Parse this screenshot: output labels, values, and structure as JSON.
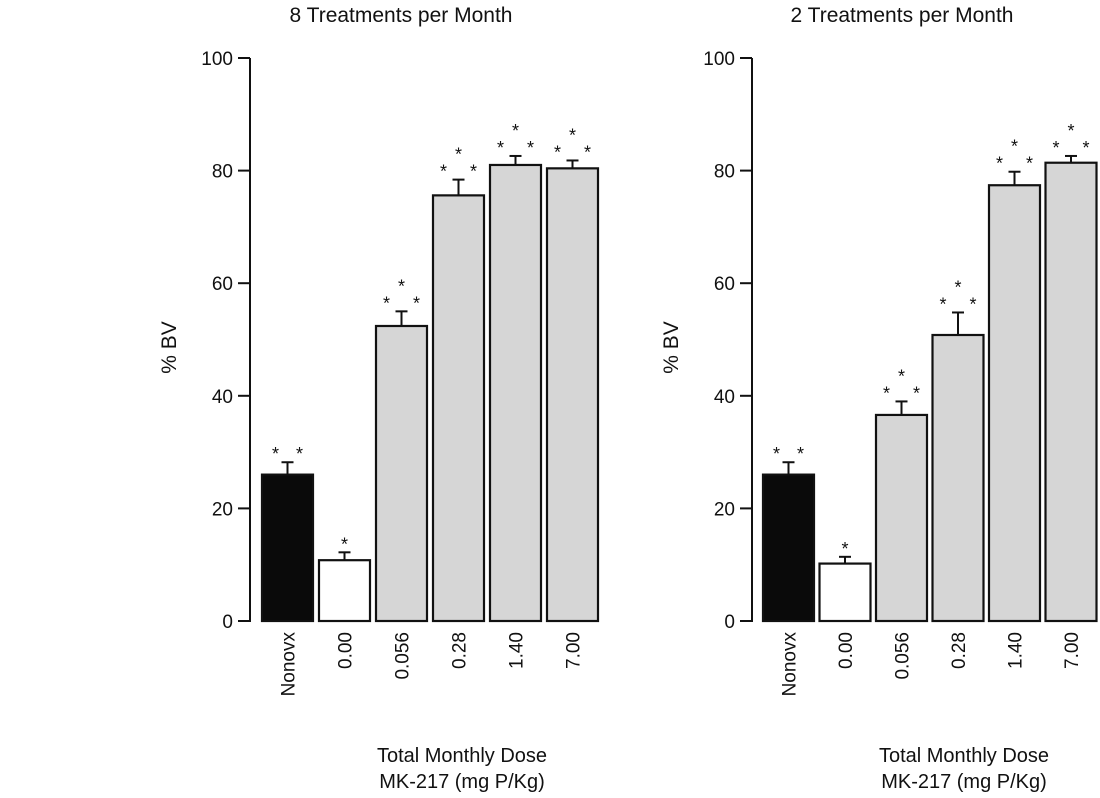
{
  "chart_data": [
    {
      "type": "bar",
      "title": "8 Treatments per Month",
      "ylabel": "% BV",
      "xlabel_lines": [
        "Total Monthly Dose",
        "MK-217 (mg P/Kg)"
      ],
      "ylim": [
        0,
        100
      ],
      "yticks": [
        "0",
        "20",
        "40",
        "60",
        "80",
        "100"
      ],
      "categories": [
        "Nonovx",
        "0.00",
        "0.056",
        "0.28",
        "1.40",
        "7.00"
      ],
      "values": [
        26,
        10.8,
        52.4,
        75.6,
        81.0,
        80.4
      ],
      "errors": [
        2.2,
        1.4,
        2.6,
        2.8,
        1.6,
        1.4
      ],
      "significance": [
        "* *",
        "*",
        "* * *",
        "* * *",
        "* * *",
        "* * *"
      ],
      "bar_fills": [
        "#0a0a0a",
        "#ffffff",
        "#d6d6d6",
        "#d6d6d6",
        "#d6d6d6",
        "#d6d6d6"
      ]
    },
    {
      "type": "bar",
      "title": "2 Treatments per Month",
      "ylabel": "% BV",
      "xlabel_lines": [
        "Total Monthly Dose",
        "MK-217 (mg P/Kg)"
      ],
      "ylim": [
        0,
        100
      ],
      "yticks": [
        "0",
        "20",
        "40",
        "60",
        "80",
        "100"
      ],
      "categories": [
        "Nonovx",
        "0.00",
        "0.056",
        "0.28",
        "1.40",
        "7.00"
      ],
      "values": [
        26,
        10.2,
        36.6,
        50.8,
        77.4,
        81.4
      ],
      "errors": [
        2.2,
        1.2,
        2.4,
        4.0,
        2.4,
        1.2
      ],
      "significance": [
        "* *",
        "*",
        "* * *",
        "* * *",
        "* * *",
        "* * *"
      ],
      "bar_fills": [
        "#0a0a0a",
        "#ffffff",
        "#d6d6d6",
        "#d6d6d6",
        "#d6d6d6",
        "#d6d6d6"
      ]
    }
  ]
}
